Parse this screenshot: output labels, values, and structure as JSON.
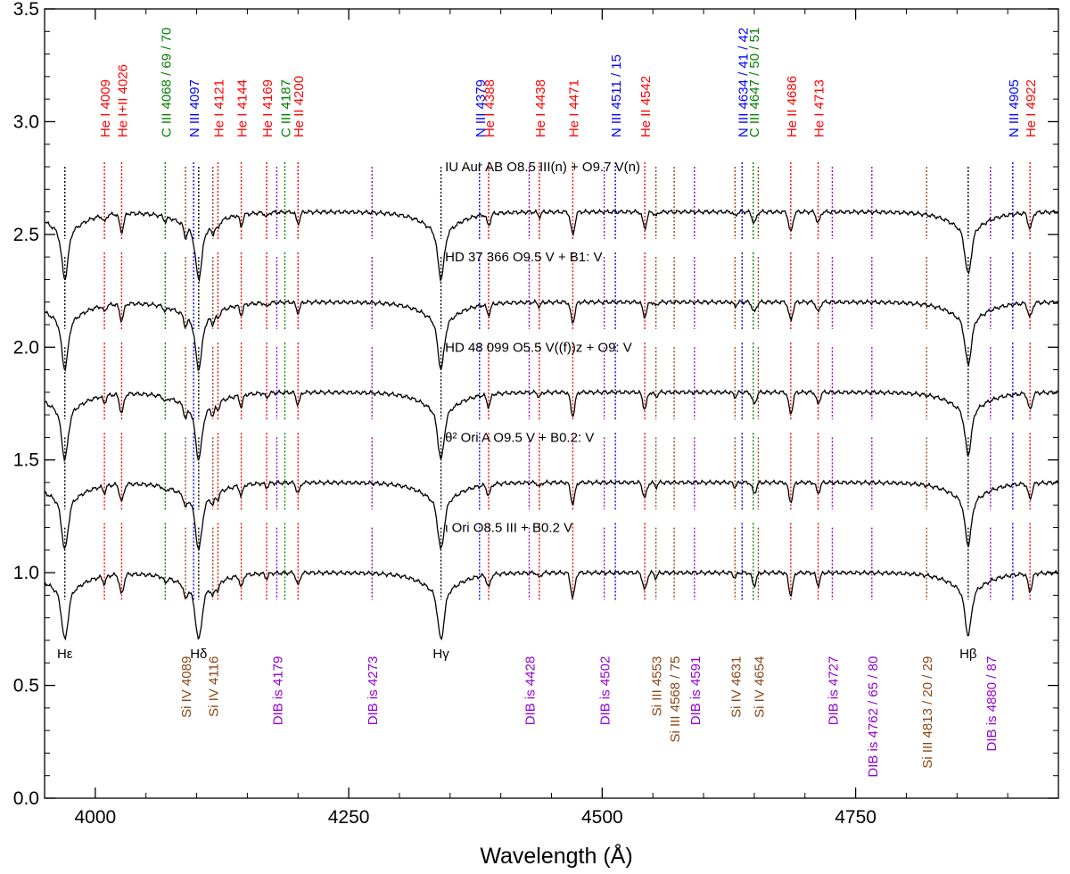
{
  "chart_data": {
    "type": "line",
    "title": "",
    "xlabel": "Wavelength (Å)",
    "ylabel": "",
    "xlim": [
      3950,
      4950
    ],
    "ylim": [
      0.0,
      3.5
    ],
    "xticks": [
      4000,
      4250,
      4500,
      4750
    ],
    "yticks": [
      0.0,
      0.5,
      1.0,
      1.5,
      2.0,
      2.5,
      3.0,
      3.5
    ],
    "colors": {
      "he": "#ff0000",
      "n": "#0000ff",
      "c": "#008000",
      "si": "#8b4513",
      "dib": "#9400d3",
      "h": "#000000",
      "spectrum": "#000000"
    },
    "series": [
      {
        "name": "IU Aur AB",
        "label": "IU Aur AB   O8.5 III(n) + O9.7 V(n)",
        "offset": 2.6
      },
      {
        "name": "HD 37 366",
        "label": "HD 37 366   O9.5 V + B1: V",
        "offset": 2.2
      },
      {
        "name": "HD 48 099",
        "label": "HD 48 099   O5.5 V((f))z + O9: V",
        "offset": 1.8
      },
      {
        "name": "θ2 Ori A",
        "label": "θ² Ori A   O9.5 V + B0.2: V",
        "offset": 1.4
      },
      {
        "name": "ι Ori",
        "label": "ι Ori   O8.5 III + B0.2 V",
        "offset": 1.0
      }
    ],
    "top_lines": [
      {
        "label": "He I 4009",
        "x": 4009,
        "group": "he"
      },
      {
        "label": "He I+II 4026",
        "x": 4026,
        "group": "he"
      },
      {
        "label": "C III 4068 / 69 / 70",
        "x": 4069,
        "group": "c"
      },
      {
        "label": "N III 4097",
        "x": 4097,
        "group": "n"
      },
      {
        "label": "He I 4121",
        "x": 4121,
        "group": "he"
      },
      {
        "label": "He I 4144",
        "x": 4144,
        "group": "he"
      },
      {
        "label": "He I 4169",
        "x": 4169,
        "group": "he"
      },
      {
        "label": "C III 4187",
        "x": 4187,
        "group": "c"
      },
      {
        "label": "He II 4200",
        "x": 4200,
        "group": "he"
      },
      {
        "label": "N III 4379",
        "x": 4379,
        "group": "n"
      },
      {
        "label": "He I 4388",
        "x": 4388,
        "group": "he"
      },
      {
        "label": "He I 4438",
        "x": 4438,
        "group": "he"
      },
      {
        "label": "He I 4471",
        "x": 4471,
        "group": "he"
      },
      {
        "label": "N III 4511 / 15",
        "x": 4513,
        "group": "n"
      },
      {
        "label": "He II 4542",
        "x": 4542,
        "group": "he"
      },
      {
        "label": "N III 4634 / 41 / 42",
        "x": 4638,
        "group": "n"
      },
      {
        "label": "C III 4647 / 50 / 51",
        "x": 4649,
        "group": "c"
      },
      {
        "label": "He II 4686",
        "x": 4686,
        "group": "he"
      },
      {
        "label": "He I 4713",
        "x": 4713,
        "group": "he"
      },
      {
        "label": "N III 4905",
        "x": 4905,
        "group": "n"
      },
      {
        "label": "He I 4922",
        "x": 4922,
        "group": "he"
      }
    ],
    "bottom_lines": [
      {
        "label": "Hε",
        "x": 3970,
        "group": "h"
      },
      {
        "label": "Si IV 4089",
        "x": 4089,
        "group": "si"
      },
      {
        "label": "Hδ",
        "x": 4102,
        "group": "h"
      },
      {
        "label": "Si IV 4116",
        "x": 4116,
        "group": "si"
      },
      {
        "label": "DIB is 4179",
        "x": 4179,
        "group": "dib"
      },
      {
        "label": "DIB is 4273",
        "x": 4273,
        "group": "dib"
      },
      {
        "label": "Hγ",
        "x": 4341,
        "group": "h"
      },
      {
        "label": "DIB is 4428",
        "x": 4428,
        "group": "dib"
      },
      {
        "label": "DIB is 4502",
        "x": 4502,
        "group": "dib"
      },
      {
        "label": "Si III 4553",
        "x": 4553,
        "group": "si"
      },
      {
        "label": "Si III 4568 / 75",
        "x": 4571,
        "group": "si"
      },
      {
        "label": "DIB is 4591",
        "x": 4591,
        "group": "dib"
      },
      {
        "label": "Si IV 4631",
        "x": 4631,
        "group": "si"
      },
      {
        "label": "Si IV 4654",
        "x": 4654,
        "group": "si"
      },
      {
        "label": "DIB is 4727",
        "x": 4727,
        "group": "dib"
      },
      {
        "label": "DIB is 4762 / 65 / 80",
        "x": 4766,
        "group": "dib"
      },
      {
        "label": "Si III 4813 / 20 / 29",
        "x": 4820,
        "group": "si"
      },
      {
        "label": "Hβ",
        "x": 4861,
        "group": "h"
      },
      {
        "label": "DIB is 4880 / 87",
        "x": 4883,
        "group": "dib"
      }
    ]
  }
}
